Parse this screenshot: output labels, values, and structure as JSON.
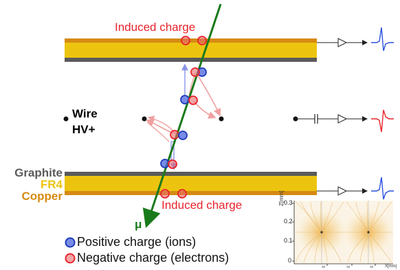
{
  "labels": {
    "induced_top": "Induced charge",
    "induced_bottom": "Induced charge",
    "wire": "Wire",
    "hv": "HV+",
    "graphite": "Graphite",
    "fr4": "FR4",
    "copper": "Copper",
    "muon": "μ"
  },
  "legend": {
    "positive": "Positive charge (ions)",
    "negative": "Negative charge (electrons)"
  },
  "inset": {
    "y_axis_title": "Z[mm]",
    "y_ticks": [
      "0.3",
      "0.2",
      "0.1",
      "0"
    ],
    "x_axis_title": "X[mm]"
  },
  "colors": {
    "copper": "#d68a12",
    "fr4": "#ecc40f",
    "graphite": "#5a5a5a",
    "positive_fill": "#3d5bdc",
    "negative_fill": "#e86a6a",
    "induced_text": "#e8232b",
    "muon_track": "#1a7a1a",
    "signal_blue": "#2a4fe0",
    "signal_red": "#e8232b"
  }
}
